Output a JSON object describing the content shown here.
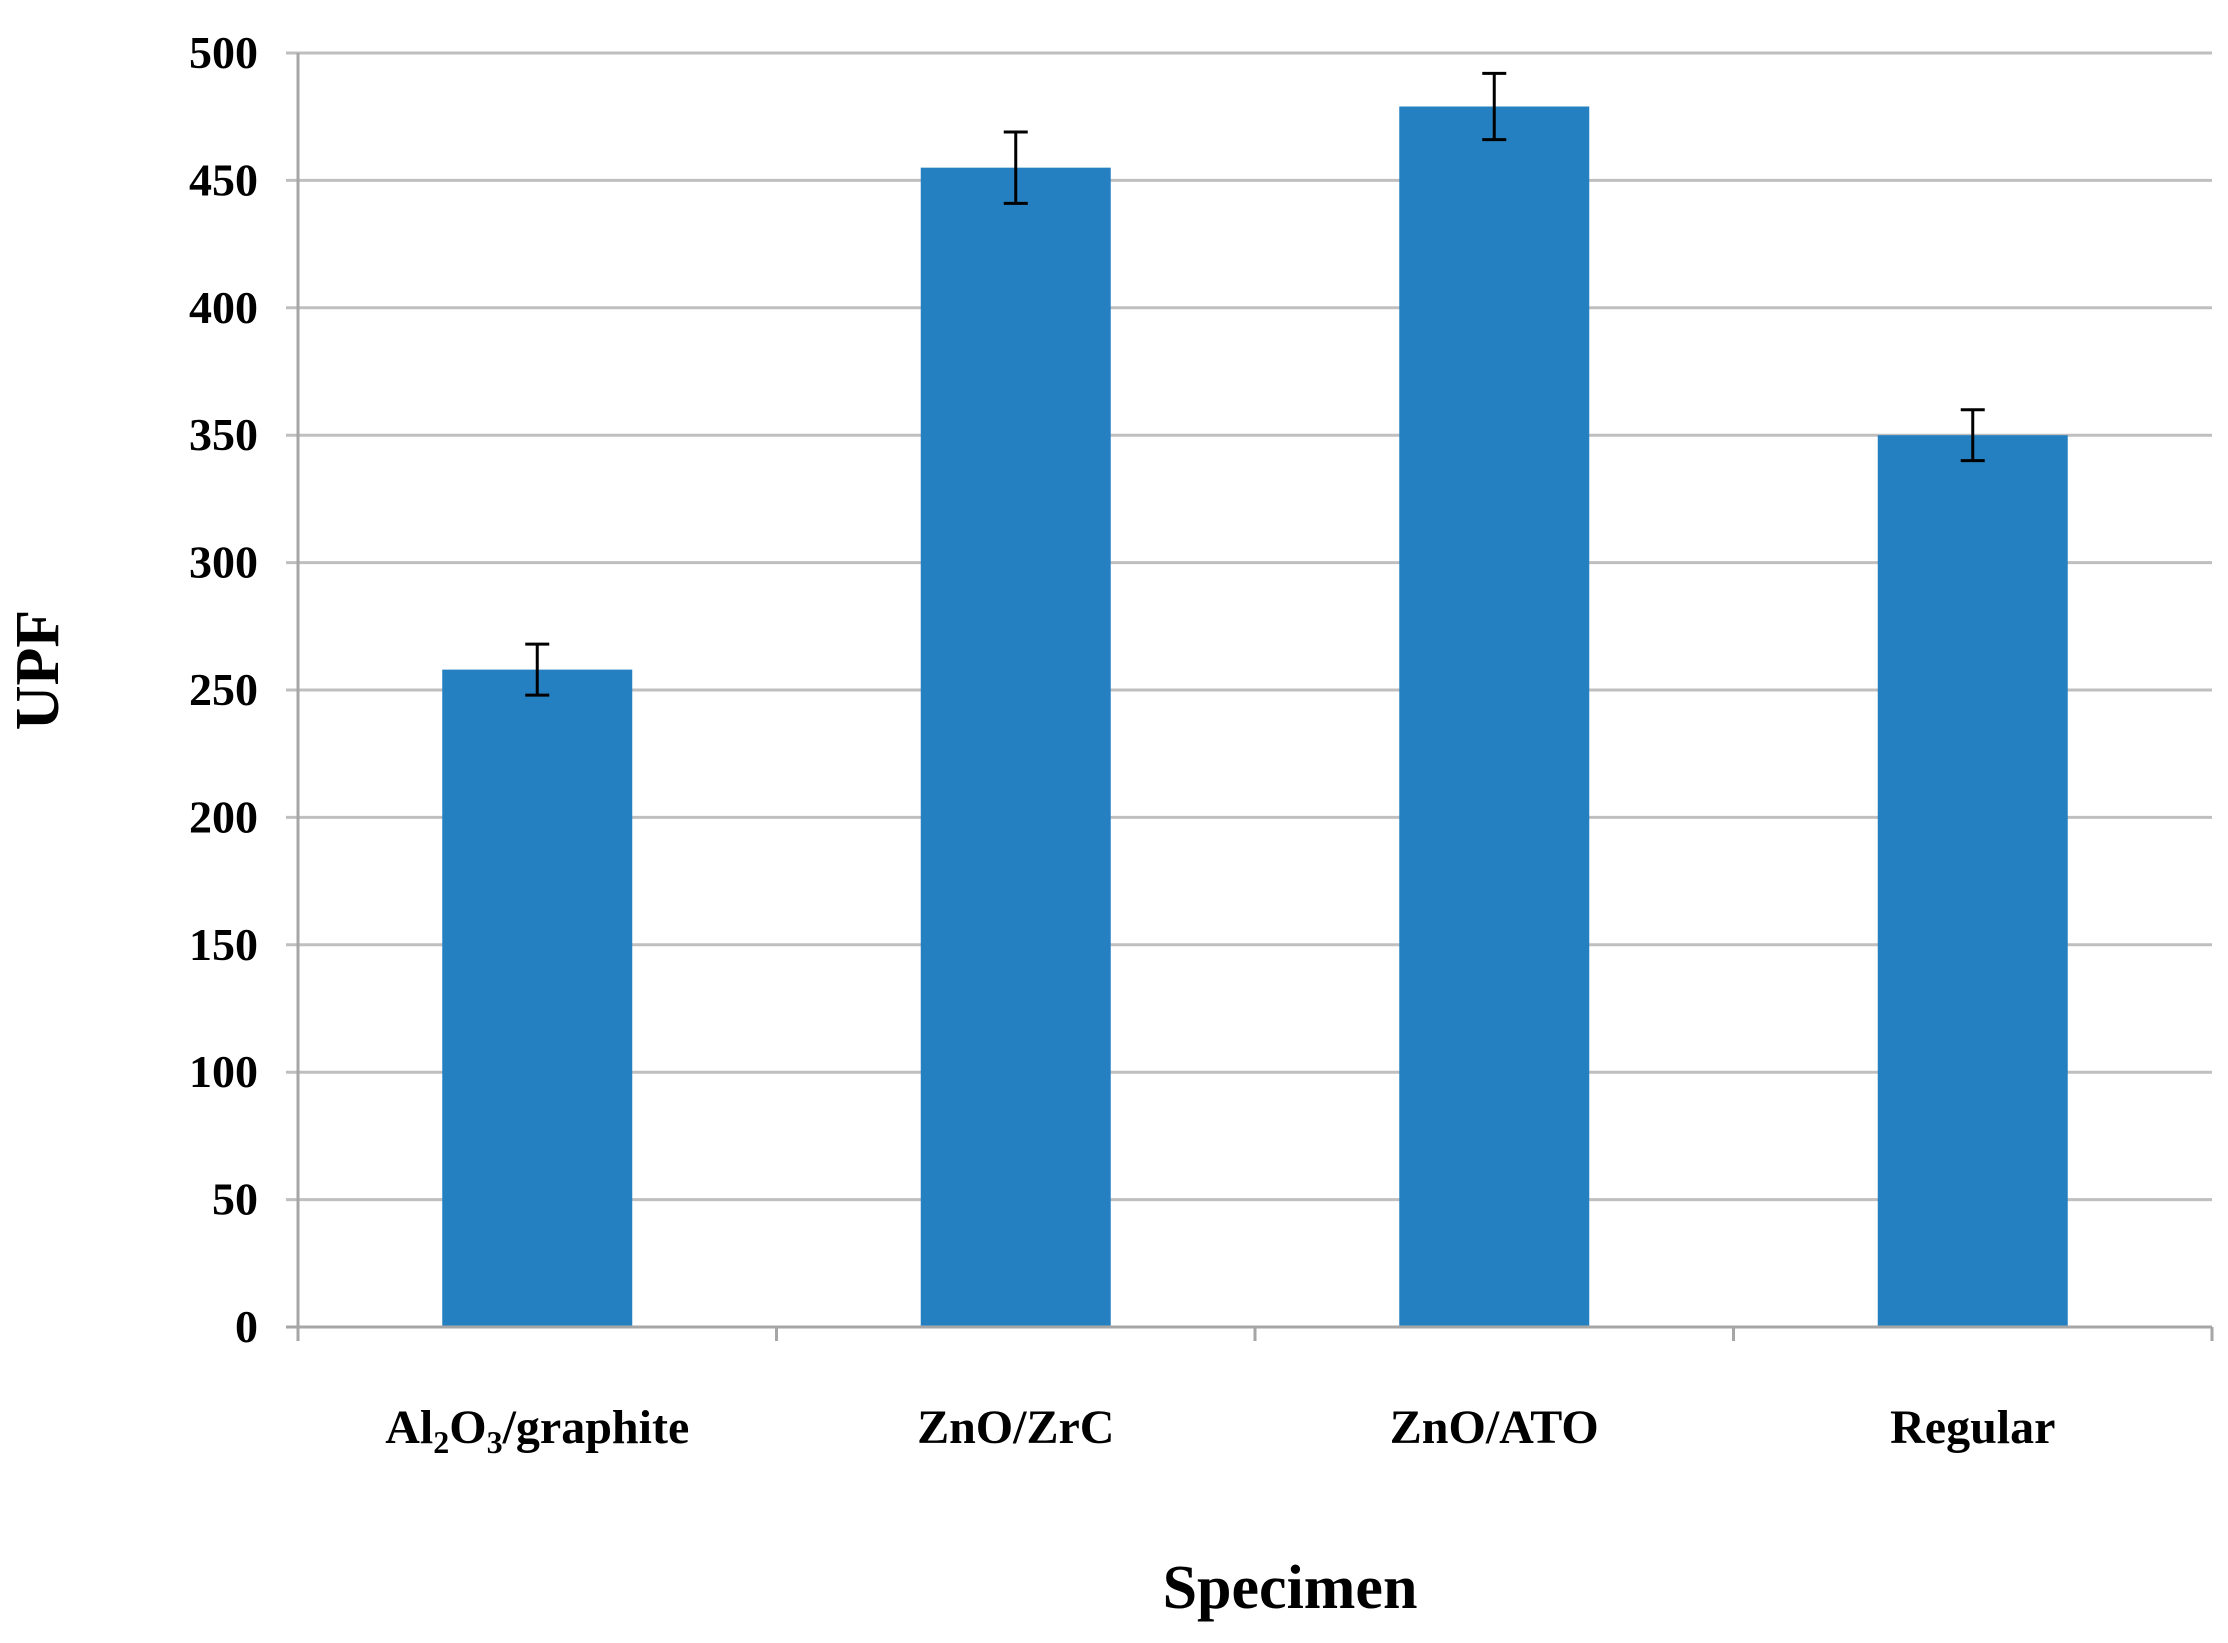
{
  "chart_data": {
    "type": "bar",
    "title": "",
    "xlabel": "Specimen",
    "ylabel": "UPF",
    "categories": [
      "Al2O3/graphite",
      "ZnO/ZrC",
      "ZnO/ATO",
      "Regular"
    ],
    "category_labels": [
      {
        "parts": [
          {
            "t": "Al"
          },
          {
            "t": "2",
            "sub": true
          },
          {
            "t": "O"
          },
          {
            "t": "3",
            "sub": true
          },
          {
            "t": "/graphite"
          }
        ]
      },
      {
        "parts": [
          {
            "t": "ZnO/ZrC"
          }
        ]
      },
      {
        "parts": [
          {
            "t": "ZnO/ATO"
          }
        ]
      },
      {
        "parts": [
          {
            "t": "Regular"
          }
        ]
      }
    ],
    "values": [
      258,
      455,
      479,
      350
    ],
    "errors": [
      10,
      14,
      13,
      10
    ],
    "ylim": [
      0,
      500
    ],
    "yticks": [
      0,
      50,
      100,
      150,
      200,
      250,
      300,
      350,
      400,
      450,
      500
    ],
    "grid": true,
    "legend": "none",
    "colors": {
      "bar": "#2580C1",
      "grid": "#BFBFBF",
      "axis": "#A6A6A6",
      "error": "#000000"
    }
  }
}
